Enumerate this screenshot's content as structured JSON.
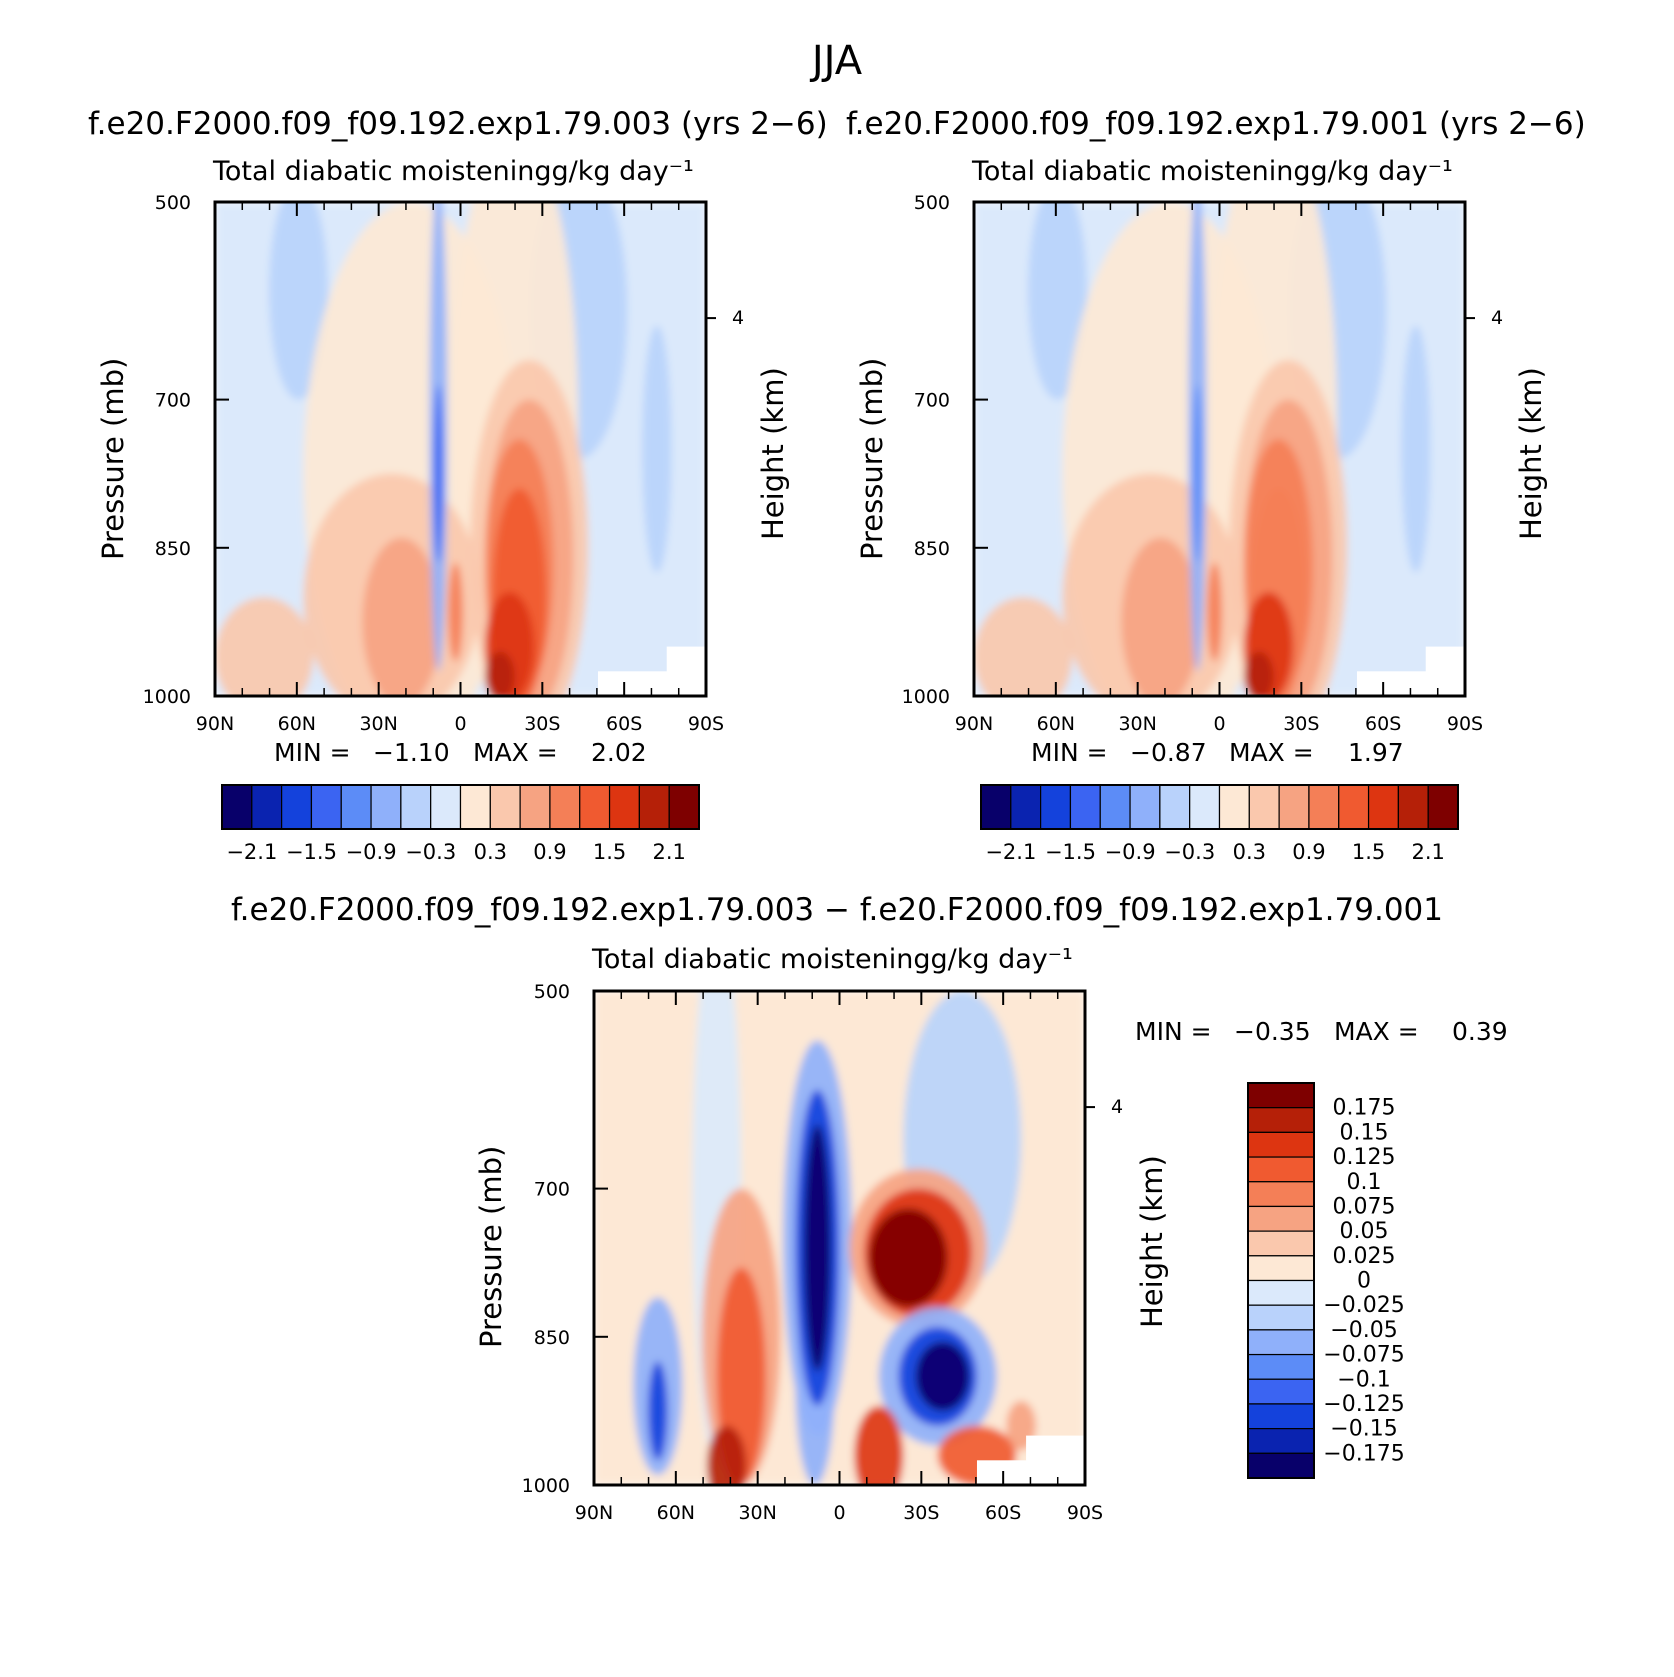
{
  "figure_title": "JJA",
  "diff_title": "f.e20.F2000.f09_f09.192.exp1.79.003 − f.e20.F2000.f09_f09.192.exp1.79.001",
  "colors": {
    "abs_levels": [
      "#08006a",
      "#0a23b0",
      "#1442dc",
      "#3b64f2",
      "#5c8cf7",
      "#8fb0fa",
      "#b9d2fb",
      "#dbe9fb",
      "#fde8d5",
      "#fac8ad",
      "#f6a382",
      "#f47f57",
      "#f05a30",
      "#dd3511",
      "#b52008",
      "#7e0000"
    ],
    "diff_levels": [
      "#08006a",
      "#0a23b0",
      "#1442dc",
      "#3b64f2",
      "#5c8cf7",
      "#8fb0fa",
      "#b9d2fb",
      "#dbe9fb",
      "#fde8d5",
      "#fac8ad",
      "#f6a382",
      "#f47f57",
      "#f05a30",
      "#dd3511",
      "#b52008",
      "#7e0000"
    ]
  },
  "chart_data": [
    {
      "type": "contour",
      "case_title": "f.e20.F2000.f09_f09.192.exp1.79.003 (yrs 2−6)",
      "title": "Total diabatic moisteningg/kg day⁻¹",
      "xlabel": "",
      "ylabel": "Pressure (mb)",
      "ylabel_right": "Height (km)",
      "x_ticks": [
        "90N",
        "60N",
        "30N",
        "0",
        "30S",
        "60S",
        "90S"
      ],
      "y_ticks": [
        "500",
        "700",
        "850",
        "1000"
      ],
      "right_ticks": [
        "4"
      ],
      "min_label": "MIN =",
      "min": "−1.10",
      "max_label": "MAX =",
      "max": "2.02",
      "colorbar_labels": [
        "−2.1",
        "−1.5",
        "−0.9",
        "−0.3",
        "0.3",
        "0.9",
        "1.5",
        "2.1"
      ],
      "levels": [
        -2.1,
        -1.8,
        -1.5,
        -1.2,
        -0.9,
        -0.6,
        -0.3,
        0,
        0.3,
        0.6,
        0.9,
        1.2,
        1.5,
        1.8,
        2.1
      ],
      "field_description": "blue columns near 70N-60N aloft, 10N narrow minimum, strong positive maximum near 20S low levels, blue 40S-70S aloft"
    },
    {
      "type": "contour",
      "case_title": "f.e20.F2000.f09_f09.192.exp1.79.001 (yrs 2−6)",
      "title": "Total diabatic moisteningg/kg day⁻¹",
      "xlabel": "",
      "ylabel": "Pressure (mb)",
      "ylabel_right": "Height (km)",
      "x_ticks": [
        "90N",
        "60N",
        "30N",
        "0",
        "30S",
        "60S",
        "90S"
      ],
      "y_ticks": [
        "500",
        "700",
        "850",
        "1000"
      ],
      "right_ticks": [
        "4"
      ],
      "min_label": "MIN =",
      "min": "−0.87",
      "max_label": "MAX =",
      "max": "1.97",
      "colorbar_labels": [
        "−2.1",
        "−1.5",
        "−0.9",
        "−0.3",
        "0.3",
        "0.9",
        "1.5",
        "2.1"
      ],
      "levels": [
        -2.1,
        -1.8,
        -1.5,
        -1.2,
        -0.9,
        -0.6,
        -0.3,
        0,
        0.3,
        0.6,
        0.9,
        1.2,
        1.5,
        1.8,
        2.1
      ]
    },
    {
      "type": "contour",
      "title": "Total diabatic moisteningg/kg day⁻¹",
      "xlabel": "",
      "ylabel": "Pressure (mb)",
      "ylabel_right": "Height (km)",
      "x_ticks": [
        "90N",
        "60N",
        "30N",
        "0",
        "30S",
        "60S",
        "90S"
      ],
      "y_ticks": [
        "500",
        "700",
        "850",
        "1000"
      ],
      "right_ticks": [
        "4"
      ],
      "min_label": "MIN =",
      "min": "−0.35",
      "max_label": "MAX =",
      "max": "0.39",
      "colorbar_labels": [
        "0.175",
        "0.15",
        "0.125",
        "0.1",
        "0.075",
        "0.05",
        "0.025",
        "0",
        "−0.025",
        "−0.05",
        "−0.075",
        "−0.1",
        "−0.125",
        "−0.15",
        "−0.175"
      ],
      "levels": [
        -0.175,
        -0.15,
        -0.125,
        -0.1,
        -0.075,
        -0.05,
        -0.025,
        0,
        0.025,
        0.05,
        0.075,
        0.1,
        0.125,
        0.15,
        0.175
      ]
    }
  ]
}
